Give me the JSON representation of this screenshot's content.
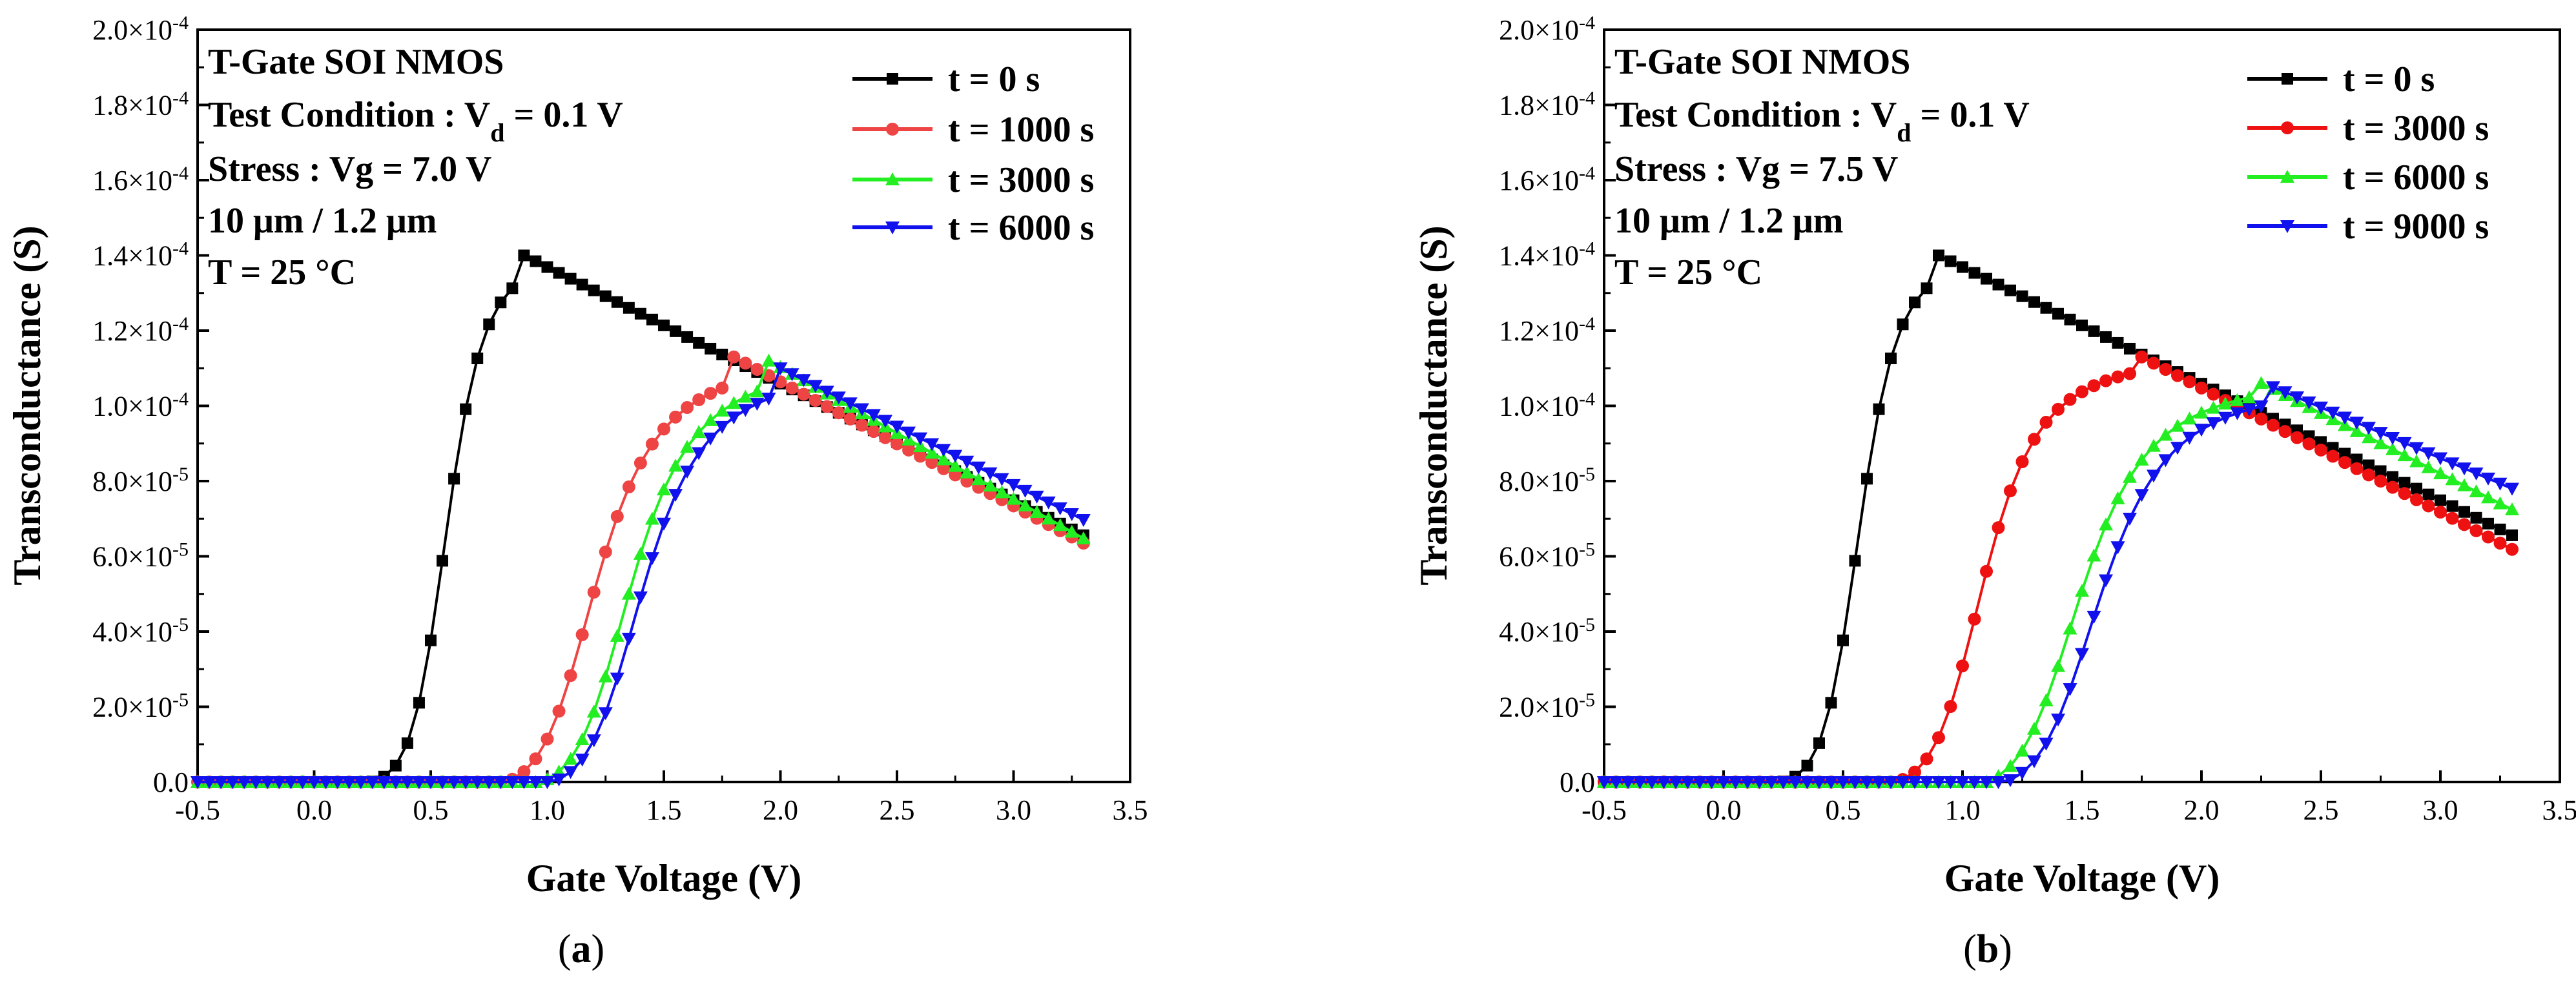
{
  "chart_data": [
    {
      "id": "a",
      "type": "scatter",
      "caption": "a",
      "xlabel": "Gate Voltage (V)",
      "ylabel": "Transconductance (S)",
      "xlim": [
        -0.5,
        3.5
      ],
      "ylim": [
        0,
        0.0002
      ],
      "x_ticks": [
        "-0.5",
        "0.0",
        "0.5",
        "1.0",
        "1.5",
        "2.0",
        "2.5",
        "3.0",
        "3.5"
      ],
      "y_ticks": [
        {
          "mant": "0.0",
          "exp": ""
        },
        {
          "mant": "2.0×10",
          "exp": "-5"
        },
        {
          "mant": "4.0×10",
          "exp": "-5"
        },
        {
          "mant": "6.0×10",
          "exp": "-5"
        },
        {
          "mant": "8.0×10",
          "exp": "-5"
        },
        {
          "mant": "1.0×10",
          "exp": "-4"
        },
        {
          "mant": "1.2×10",
          "exp": "-4"
        },
        {
          "mant": "1.4×10",
          "exp": "-4"
        },
        {
          "mant": "1.6×10",
          "exp": "-4"
        },
        {
          "mant": "1.8×10",
          "exp": "-4"
        },
        {
          "mant": "2.0×10",
          "exp": "-4"
        }
      ],
      "annotations": {
        "line1": "T-Gate SOI NMOS",
        "line2_pre": "Test Condition : V",
        "line2_sub": "d",
        "line2_post": " = 0.1 V",
        "line3": "Stress : Vg = 7.0 V",
        "line4": "10 μm / 1.2 μm",
        "line5": "T = 25 °C"
      },
      "series": [
        {
          "name": "t = 0 s",
          "color": "#000000",
          "marker": "square",
          "vth": 0.54,
          "kpeak": 0.00014,
          "xpeak": 0.9,
          "slope": 3.1e-05,
          "steep": 0.075,
          "rise": 0.2
        },
        {
          "name": "t = 1000 s",
          "color": "#ee4444",
          "marker": "circle",
          "vth": 1.12,
          "kpeak": 0.000113,
          "xpeak": 1.8,
          "slope": 3.3e-05,
          "steep": 0.11,
          "rise": 0.35
        },
        {
          "name": "t = 3000 s",
          "color": "#22ee22",
          "marker": "triangle-up",
          "vth": 1.27,
          "kpeak": 0.000112,
          "xpeak": 1.95,
          "slope": 3.5e-05,
          "steep": 0.11,
          "rise": 0.35
        },
        {
          "name": "t = 6000 s",
          "color": "#1111ee",
          "marker": "triangle-down",
          "vth": 1.32,
          "kpeak": 0.00011,
          "xpeak": 2.0,
          "slope": 3.1e-05,
          "steep": 0.11,
          "rise": 0.35
        }
      ]
    },
    {
      "id": "b",
      "type": "scatter",
      "caption": "b",
      "xlabel": "Gate Voltage (V)",
      "ylabel": "Transconductance (S)",
      "xlim": [
        -0.5,
        3.5
      ],
      "ylim": [
        0,
        0.0002
      ],
      "x_ticks": [
        "-0.5",
        "0.0",
        "0.5",
        "1.0",
        "1.5",
        "2.0",
        "2.5",
        "3.0",
        "3.5"
      ],
      "y_ticks": [
        {
          "mant": "0.0",
          "exp": ""
        },
        {
          "mant": "2.0×10",
          "exp": "-5"
        },
        {
          "mant": "4.0×10",
          "exp": "-5"
        },
        {
          "mant": "6.0×10",
          "exp": "-5"
        },
        {
          "mant": "8.0×10",
          "exp": "-5"
        },
        {
          "mant": "1.0×10",
          "exp": "-4"
        },
        {
          "mant": "1.2×10",
          "exp": "-4"
        },
        {
          "mant": "1.4×10",
          "exp": "-4"
        },
        {
          "mant": "1.6×10",
          "exp": "-4"
        },
        {
          "mant": "1.8×10",
          "exp": "-4"
        },
        {
          "mant": "2.0×10",
          "exp": "-4"
        }
      ],
      "annotations": {
        "line1": "T-Gate SOI NMOS",
        "line2_pre": "Test Condition : V",
        "line2_sub": "d",
        "line2_post": " = 0.1 V",
        "line3": "Stress : Vg = 7.5 V",
        "line4": "10 μm / 1.2 μm",
        "line5": "T = 25 °C"
      },
      "series": [
        {
          "name": "t = 0 s",
          "color": "#000000",
          "marker": "square",
          "vth": 0.54,
          "kpeak": 0.00014,
          "xpeak": 0.9,
          "slope": 3.1e-05,
          "steep": 0.075,
          "rise": 0.2
        },
        {
          "name": "t = 3000 s",
          "color": "#ee1111",
          "marker": "circle",
          "vth": 1.02,
          "kpeak": 0.000113,
          "xpeak": 1.75,
          "slope": 3.3e-05,
          "steep": 0.1,
          "rise": 0.3
        },
        {
          "name": "t = 6000 s",
          "color": "#22ee22",
          "marker": "triangle-up",
          "vth": 1.4,
          "kpeak": 0.000107,
          "xpeak": 2.22,
          "slope": 3.2e-05,
          "steep": 0.12,
          "rise": 0.35
        },
        {
          "name": "t = 9000 s",
          "color": "#1111ee",
          "marker": "triangle-down",
          "vth": 1.48,
          "kpeak": 0.000105,
          "xpeak": 2.3,
          "slope": 2.7e-05,
          "steep": 0.12,
          "rise": 0.35
        }
      ]
    }
  ]
}
